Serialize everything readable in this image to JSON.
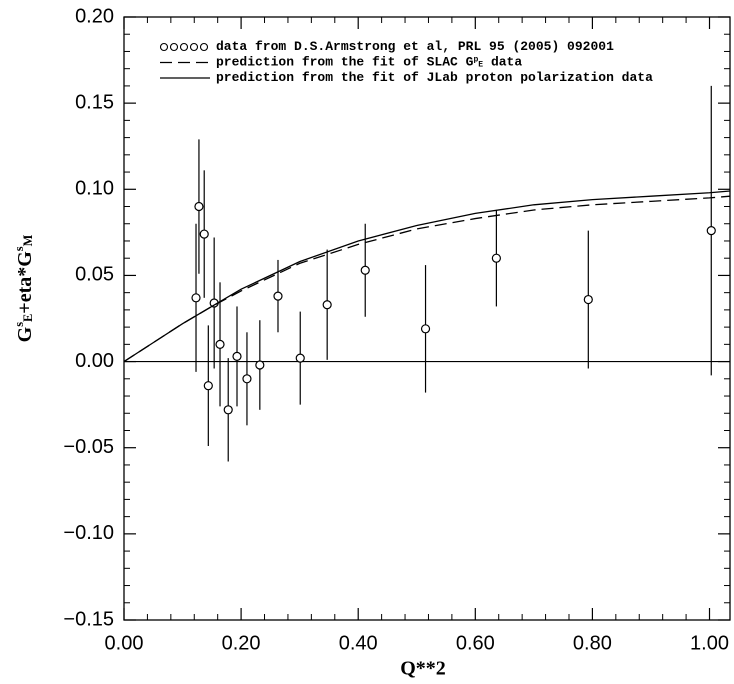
{
  "chart_data": {
    "type": "scatter",
    "x_label": "Q**2",
    "y_label": [
      {
        "text": "G"
      },
      {
        "sup": "s"
      },
      {
        "sub": "E"
      },
      {
        "text": "+eta*G"
      },
      {
        "sup": "s"
      },
      {
        "sub": "M"
      }
    ],
    "xlim": [
      0,
      1.035
    ],
    "ylim": [
      -0.15,
      0.2
    ],
    "xticks": [
      {
        "value": 0,
        "label": "0.00"
      },
      {
        "value": 0.2,
        "label": "0.20"
      },
      {
        "value": 0.4,
        "label": "0.40"
      },
      {
        "value": 0.6,
        "label": "0.60"
      },
      {
        "value": 0.8,
        "label": "0.80"
      },
      {
        "value": 1.0,
        "label": "1.00"
      }
    ],
    "yticks": [
      {
        "value": -0.15,
        "label": "−0.15"
      },
      {
        "value": -0.1,
        "label": "−0.10"
      },
      {
        "value": -0.05,
        "label": "−0.05"
      },
      {
        "value": 0,
        "label": "0.00"
      },
      {
        "value": 0.05,
        "label": "0.05"
      },
      {
        "value": 0.1,
        "label": "0.10"
      },
      {
        "value": 0.15,
        "label": "0.15"
      },
      {
        "value": 0.2,
        "label": "0.20"
      }
    ],
    "series": [
      {
        "type": "scatter",
        "name": [
          {
            "text": "data from D.S.Armstrong et al, PRL 95 (2005) 092001"
          }
        ],
        "color": "#000000",
        "x": [
          0.123,
          0.128,
          0.137,
          0.144,
          0.154,
          0.164,
          0.178,
          0.193,
          0.21,
          0.232,
          0.263,
          0.301,
          0.347,
          0.412,
          0.515,
          0.636,
          0.793,
          1.003
        ],
        "values": [
          0.037,
          0.09,
          0.074,
          -0.014,
          0.034,
          0.01,
          -0.028,
          0.003,
          -0.01,
          -0.002,
          0.038,
          0.002,
          0.033,
          0.053,
          0.019,
          0.06,
          0.036,
          0.076
        ],
        "errors": [
          0.043,
          0.039,
          0.037,
          0.035,
          0.038,
          0.036,
          0.03,
          0.029,
          0.027,
          0.026,
          0.021,
          0.027,
          0.032,
          0.027,
          0.037,
          0.028,
          0.04,
          0.084
        ]
      },
      {
        "type": "line",
        "dash": true,
        "name": [
          {
            "text": "prediction from the fit of SLAC G"
          },
          {
            "sup": "p"
          },
          {
            "sub": "E"
          },
          {
            "text": " data"
          }
        ],
        "color": "#000000",
        "x": [
          0,
          0.05,
          0.1,
          0.15,
          0.2,
          0.3,
          0.4,
          0.5,
          0.6,
          0.7,
          0.8,
          0.9,
          1.0,
          1.035
        ],
        "values": [
          0,
          0.011,
          0.022,
          0.032,
          0.041,
          0.057,
          0.068,
          0.077,
          0.083,
          0.088,
          0.091,
          0.093,
          0.095,
          0.096
        ]
      },
      {
        "type": "line",
        "dash": false,
        "name": [
          {
            "text": "prediction from the fit of JLab proton polarization data"
          }
        ],
        "color": "#000000",
        "x": [
          0,
          0.05,
          0.1,
          0.15,
          0.2,
          0.3,
          0.4,
          0.5,
          0.6,
          0.7,
          0.8,
          0.9,
          1.0,
          1.035
        ],
        "values": [
          0,
          0.011,
          0.022,
          0.032,
          0.042,
          0.058,
          0.07,
          0.079,
          0.086,
          0.091,
          0.094,
          0.096,
          0.098,
          0.099
        ]
      }
    ]
  }
}
